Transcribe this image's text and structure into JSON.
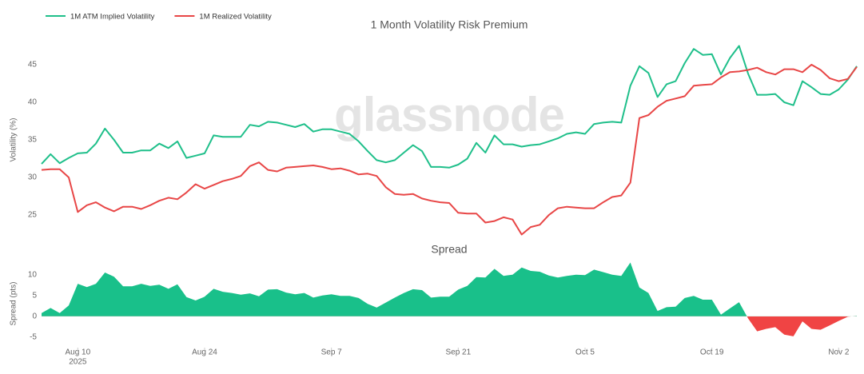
{
  "chart_data": [
    {
      "type": "line",
      "title": "1 Month Volatility Risk Premium",
      "watermark": "glassnode",
      "ylabel": "Volatility (%)",
      "legend": "top-left",
      "x": [
        "2025-08-06",
        "2025-08-07",
        "2025-08-08",
        "2025-08-09",
        "2025-08-10",
        "2025-08-11",
        "2025-08-12",
        "2025-08-13",
        "2025-08-14",
        "2025-08-15",
        "2025-08-16",
        "2025-08-17",
        "2025-08-18",
        "2025-08-19",
        "2025-08-20",
        "2025-08-21",
        "2025-08-22",
        "2025-08-23",
        "2025-08-24",
        "2025-08-25",
        "2025-08-26",
        "2025-08-27",
        "2025-08-28",
        "2025-08-29",
        "2025-08-30",
        "2025-08-31",
        "2025-09-01",
        "2025-09-02",
        "2025-09-03",
        "2025-09-04",
        "2025-09-05",
        "2025-09-06",
        "2025-09-07",
        "2025-09-08",
        "2025-09-09",
        "2025-09-10",
        "2025-09-11",
        "2025-09-12",
        "2025-09-13",
        "2025-09-14",
        "2025-09-15",
        "2025-09-16",
        "2025-09-17",
        "2025-09-18",
        "2025-09-19",
        "2025-09-20",
        "2025-09-21",
        "2025-09-22",
        "2025-09-23",
        "2025-09-24",
        "2025-09-25",
        "2025-09-26",
        "2025-09-27",
        "2025-09-28",
        "2025-09-29",
        "2025-09-30",
        "2025-10-01",
        "2025-10-02",
        "2025-10-03",
        "2025-10-04",
        "2025-10-05",
        "2025-10-06",
        "2025-10-07",
        "2025-10-08",
        "2025-10-09",
        "2025-10-10",
        "2025-10-11",
        "2025-10-12",
        "2025-10-13",
        "2025-10-14",
        "2025-10-15",
        "2025-10-16",
        "2025-10-17",
        "2025-10-18",
        "2025-10-19",
        "2025-10-20",
        "2025-10-21",
        "2025-10-22",
        "2025-10-23",
        "2025-10-24",
        "2025-10-25",
        "2025-10-26",
        "2025-10-27",
        "2025-10-28",
        "2025-10-29",
        "2025-10-30",
        "2025-10-31",
        "2025-11-01",
        "2025-11-02",
        "2025-11-03",
        "2025-11-04"
      ],
      "xlim": [
        "2025-08-06",
        "2025-11-04"
      ],
      "series": [
        {
          "name": "1M ATM Implied Volatility",
          "color": "#1fbf8a",
          "values": [
            31.8,
            33.1,
            31.9,
            32.6,
            33.2,
            33.3,
            34.5,
            36.5,
            35.0,
            33.3,
            33.3,
            33.6,
            33.6,
            34.5,
            33.9,
            34.8,
            32.6,
            32.9,
            33.2,
            35.6,
            35.4,
            35.4,
            35.4,
            37.0,
            36.8,
            37.4,
            37.3,
            37.0,
            36.7,
            37.1,
            36.1,
            36.4,
            36.4,
            36.1,
            35.8,
            34.8,
            33.5,
            32.3,
            32.0,
            32.3,
            33.3,
            34.3,
            33.5,
            31.4,
            31.4,
            31.3,
            31.7,
            32.5,
            34.6,
            33.3,
            35.6,
            34.4,
            34.4,
            34.1,
            34.3,
            34.4,
            34.8,
            35.2,
            35.8,
            36.0,
            35.8,
            37.1,
            37.3,
            37.4,
            37.3,
            42.2,
            44.8,
            43.9,
            40.7,
            42.4,
            42.8,
            45.2,
            47.1,
            46.3,
            46.4,
            43.7,
            45.9,
            47.5,
            43.8,
            41.0,
            41.0,
            41.1,
            40.0,
            39.6,
            42.8,
            42.0,
            41.1,
            41.0,
            41.7,
            43.0,
            44.8
          ]
        },
        {
          "name": "1M Realized Volatility",
          "color": "#e84646",
          "values": [
            31.0,
            31.1,
            31.1,
            30.0,
            25.4,
            26.3,
            26.7,
            26.0,
            25.5,
            26.1,
            26.1,
            25.8,
            26.3,
            26.9,
            27.3,
            27.1,
            28.0,
            29.1,
            28.5,
            29.0,
            29.5,
            29.8,
            30.2,
            31.5,
            32.0,
            31.0,
            30.8,
            31.3,
            31.4,
            31.5,
            31.6,
            31.4,
            31.1,
            31.2,
            30.9,
            30.4,
            30.5,
            30.2,
            28.7,
            27.8,
            27.7,
            27.8,
            27.2,
            26.9,
            26.7,
            26.6,
            25.3,
            25.2,
            25.2,
            24.0,
            24.2,
            24.7,
            24.4,
            22.4,
            23.4,
            23.7,
            25.0,
            25.9,
            26.1,
            26.0,
            25.9,
            25.9,
            26.7,
            27.4,
            27.6,
            29.3,
            37.9,
            38.3,
            39.4,
            40.2,
            40.5,
            40.8,
            42.2,
            42.3,
            42.4,
            43.3,
            44.0,
            44.1,
            44.3,
            44.6,
            44.0,
            43.7,
            44.4,
            44.4,
            44.0,
            45.0,
            44.3,
            43.2,
            42.8,
            43.1,
            44.7
          ]
        }
      ],
      "ylim": [
        21.5,
        48.5
      ],
      "yticks": [
        25,
        30,
        35,
        40,
        45
      ],
      "grid": false
    },
    {
      "type": "area",
      "title": "Spread",
      "ylabel": "Spread (pts)",
      "x": [
        "2025-08-06",
        "2025-08-07",
        "2025-08-08",
        "2025-08-09",
        "2025-08-10",
        "2025-08-11",
        "2025-08-12",
        "2025-08-13",
        "2025-08-14",
        "2025-08-15",
        "2025-08-16",
        "2025-08-17",
        "2025-08-18",
        "2025-08-19",
        "2025-08-20",
        "2025-08-21",
        "2025-08-22",
        "2025-08-23",
        "2025-08-24",
        "2025-08-25",
        "2025-08-26",
        "2025-08-27",
        "2025-08-28",
        "2025-08-29",
        "2025-08-30",
        "2025-08-31",
        "2025-09-01",
        "2025-09-02",
        "2025-09-03",
        "2025-09-04",
        "2025-09-05",
        "2025-09-06",
        "2025-09-07",
        "2025-09-08",
        "2025-09-09",
        "2025-09-10",
        "2025-09-11",
        "2025-09-12",
        "2025-09-13",
        "2025-09-14",
        "2025-09-15",
        "2025-09-16",
        "2025-09-17",
        "2025-09-18",
        "2025-09-19",
        "2025-09-20",
        "2025-09-21",
        "2025-09-22",
        "2025-09-23",
        "2025-09-24",
        "2025-09-25",
        "2025-09-26",
        "2025-09-27",
        "2025-09-28",
        "2025-09-29",
        "2025-09-30",
        "2025-10-01",
        "2025-10-02",
        "2025-10-03",
        "2025-10-04",
        "2025-10-05",
        "2025-10-06",
        "2025-10-07",
        "2025-10-08",
        "2025-10-09",
        "2025-10-10",
        "2025-10-11",
        "2025-10-12",
        "2025-10-13",
        "2025-10-14",
        "2025-10-15",
        "2025-10-16",
        "2025-10-17",
        "2025-10-18",
        "2025-10-19",
        "2025-10-20",
        "2025-10-21",
        "2025-10-22",
        "2025-10-23",
        "2025-10-24",
        "2025-10-25",
        "2025-10-26",
        "2025-10-27",
        "2025-10-28",
        "2025-10-29",
        "2025-10-30",
        "2025-10-31",
        "2025-11-01",
        "2025-11-02",
        "2025-11-03",
        "2025-11-04"
      ],
      "xlim": [
        "2025-08-06",
        "2025-11-04"
      ],
      "xticks": [
        {
          "value": "2025-08-10",
          "label": "Aug 10"
        },
        {
          "value": "2025-08-24",
          "label": "Aug 24"
        },
        {
          "value": "2025-09-07",
          "label": "Sep 7"
        },
        {
          "value": "2025-09-21",
          "label": "Sep 21"
        },
        {
          "value": "2025-10-05",
          "label": "Oct 5"
        },
        {
          "value": "2025-10-19",
          "label": "Oct 19"
        },
        {
          "value": "2025-11-02",
          "label": "Nov 2"
        }
      ],
      "xtick_year": "2025",
      "series": [
        {
          "color": "#19c08a",
          "negative_color": "#f04444",
          "values": [
            0.8,
            2.0,
            0.8,
            2.6,
            7.8,
            7.0,
            7.8,
            10.5,
            9.5,
            7.2,
            7.2,
            7.8,
            7.3,
            7.6,
            6.6,
            7.7,
            4.6,
            3.8,
            4.7,
            6.6,
            5.9,
            5.6,
            5.2,
            5.5,
            4.8,
            6.4,
            6.5,
            5.7,
            5.3,
            5.6,
            4.5,
            5.0,
            5.3,
            4.9,
            4.9,
            4.4,
            3.0,
            2.1,
            3.3,
            4.5,
            5.6,
            6.5,
            6.3,
            4.5,
            4.7,
            4.7,
            6.4,
            7.3,
            9.4,
            9.3,
            11.4,
            9.7,
            10.0,
            11.7,
            10.9,
            10.7,
            9.8,
            9.3,
            9.7,
            10.0,
            9.9,
            11.2,
            10.6,
            10.0,
            9.7,
            12.9,
            6.9,
            5.6,
            1.3,
            2.2,
            2.3,
            4.4,
            4.9,
            4.0,
            4.0,
            0.4,
            1.9,
            3.4,
            -0.5,
            -3.6,
            -3.0,
            -2.6,
            -4.4,
            -4.8,
            -1.2,
            -3.0,
            -3.2,
            -2.2,
            -1.1,
            -0.1,
            0.1
          ]
        }
      ],
      "ylim": [
        -7.5,
        13
      ],
      "yticks": [
        -5,
        0,
        5,
        10
      ],
      "grid": false
    }
  ]
}
